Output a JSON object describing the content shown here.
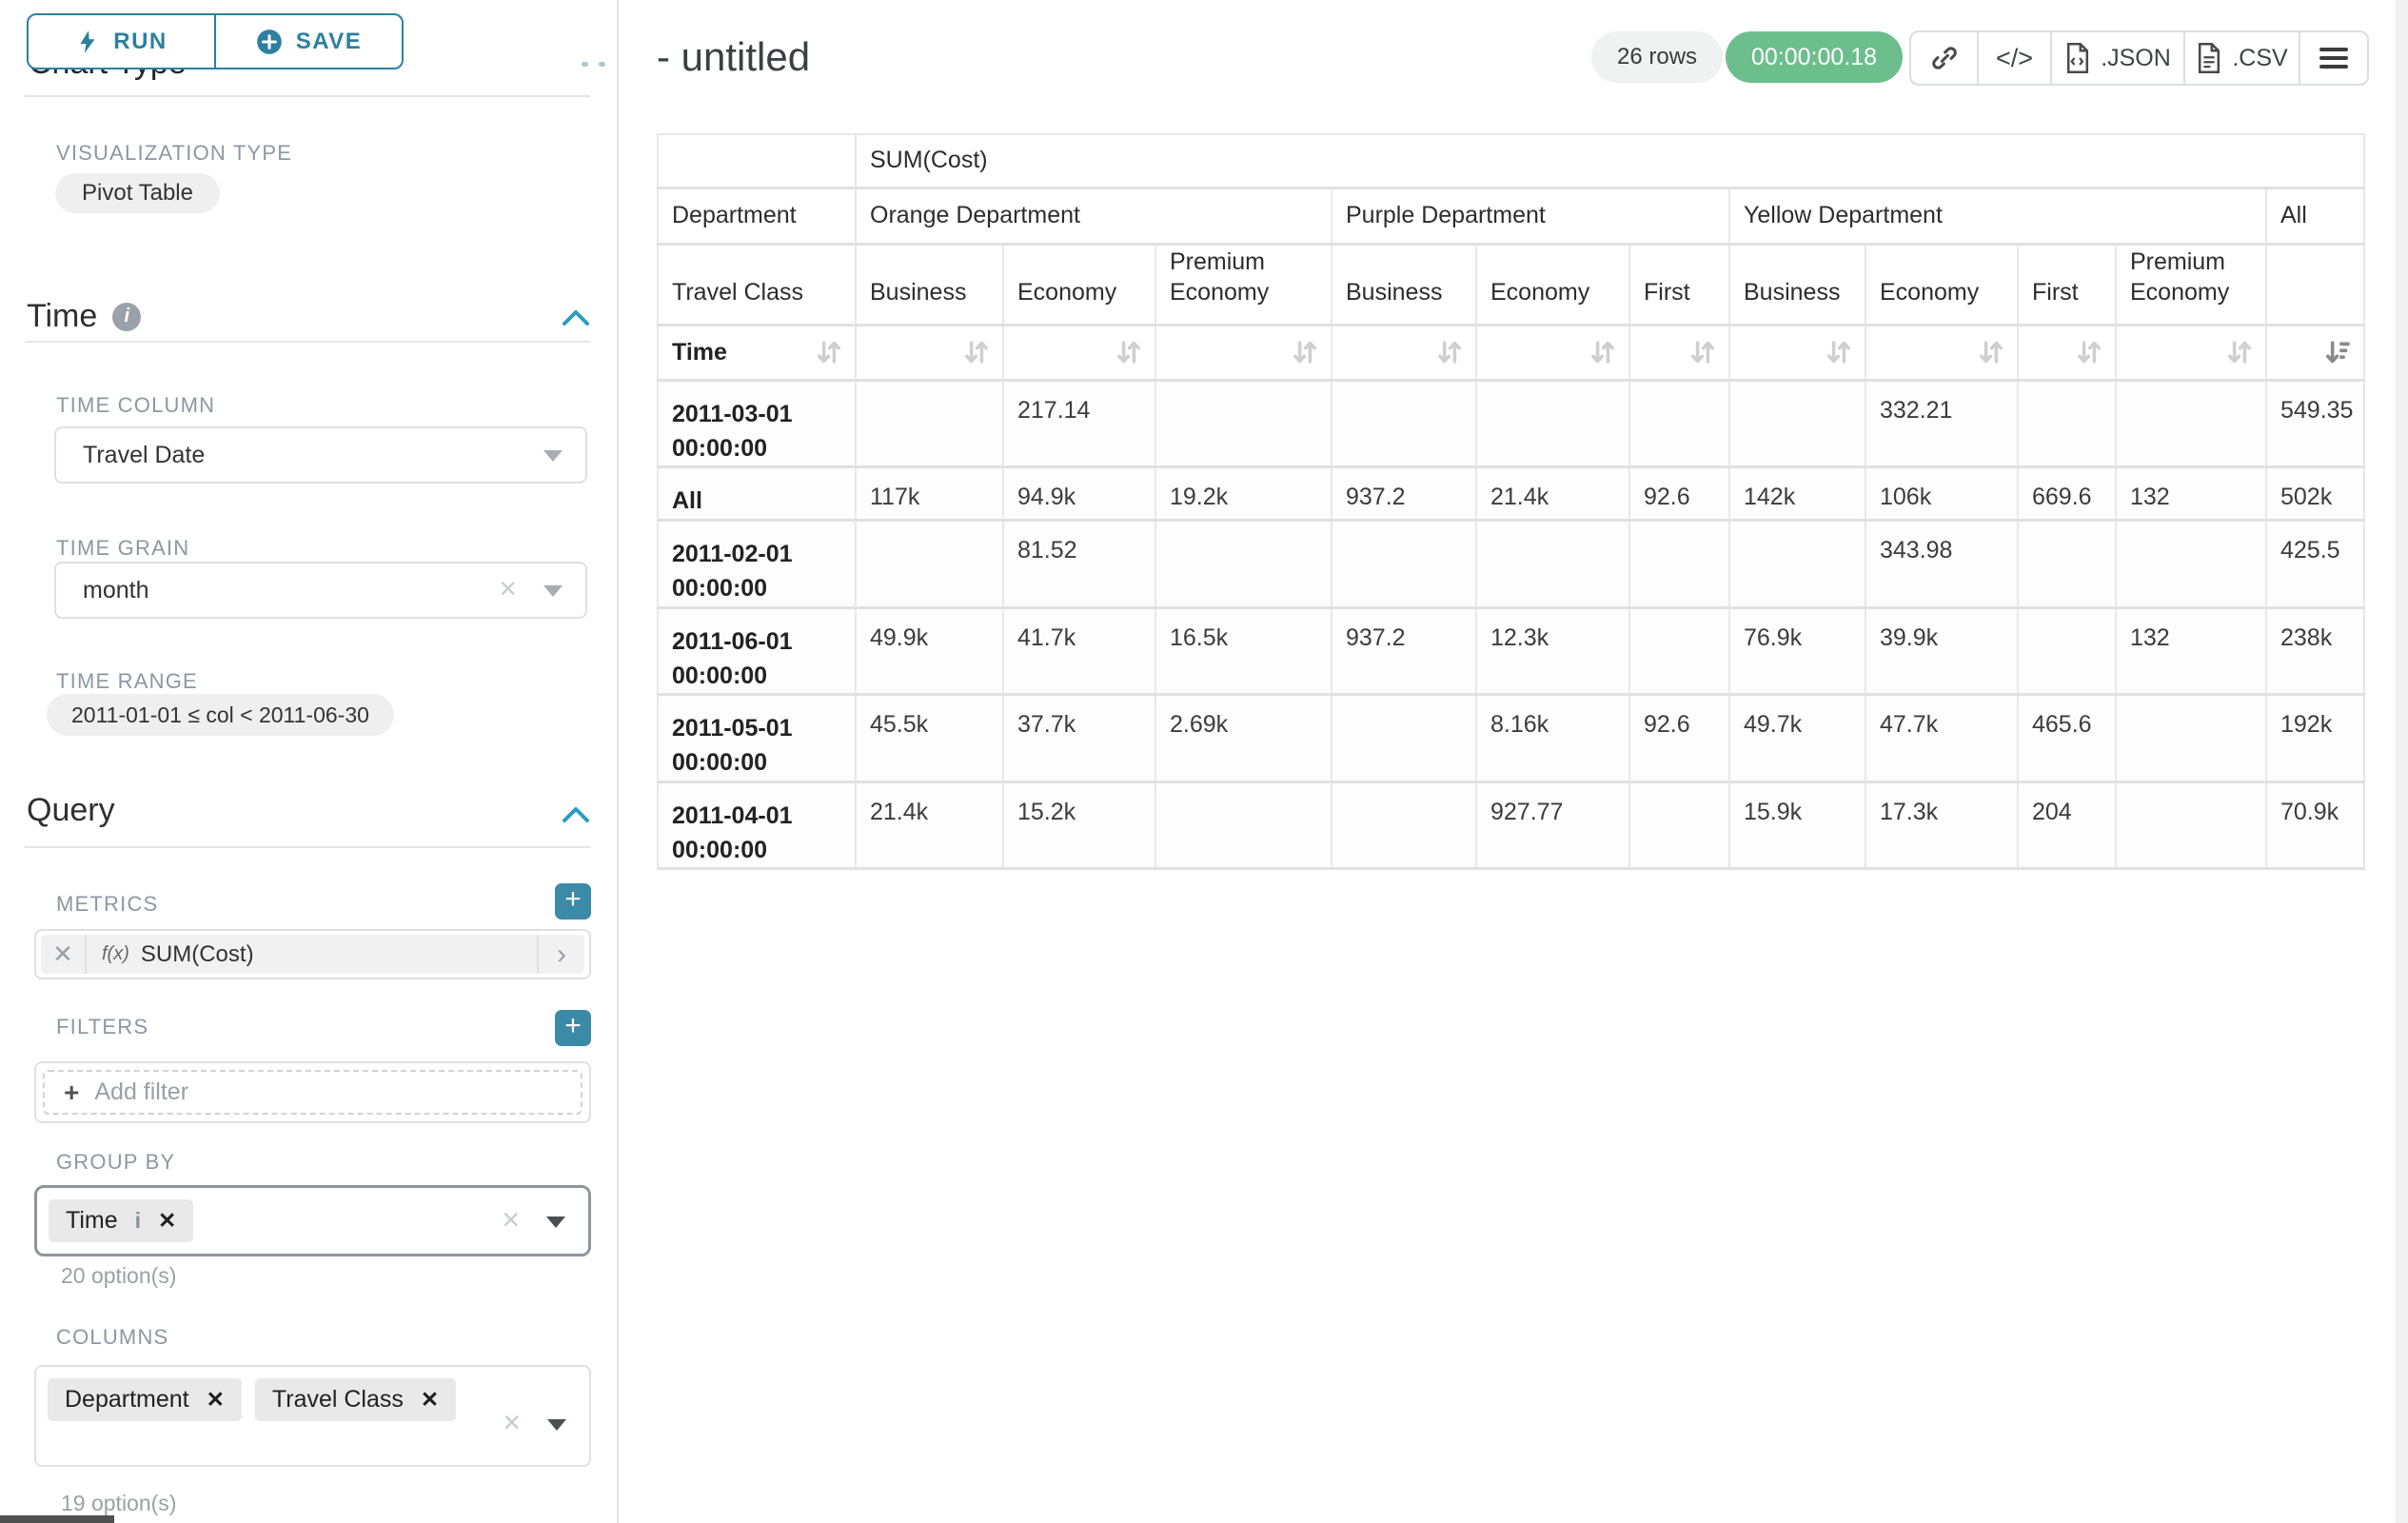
{
  "colors": {
    "accent_teal": "#2c80a0",
    "timer_green": "#6dbe8d",
    "label_gray": "#8b98a1"
  },
  "icons": {
    "run": "bolt-icon",
    "save": "plus-circle-icon",
    "time_info": "info-icon",
    "collapse": "chevron-up-icon",
    "share": "link-icon",
    "embed": "code-icon",
    "json": "file-code-icon",
    "csv": "file-text-icon",
    "menu": "hamburger-icon",
    "sort": "sort-arrows-icon",
    "sort_desc": "sort-desc-icon"
  },
  "sidebar": {
    "run_button": "RUN",
    "save_button": "SAVE",
    "hidden_heading": "Chart Type",
    "visualization": {
      "label": "VISUALIZATION TYPE",
      "value": "Pivot Table"
    },
    "time": {
      "title": "Time",
      "time_column_label": "TIME COLUMN",
      "time_column_value": "Travel Date",
      "time_grain_label": "TIME GRAIN",
      "time_grain_value": "month",
      "time_range_label": "TIME RANGE",
      "time_range_value": "2011-01-01 ≤ col < 2011-06-30"
    },
    "query": {
      "title": "Query",
      "metrics_label": "METRICS",
      "metric_fn_badge": "f(x)",
      "metric_value": "SUM(Cost)",
      "filters_label": "FILTERS",
      "add_filter_label": "Add filter",
      "group_by_label": "GROUP BY",
      "group_by_chips": [
        {
          "label": "Time",
          "info": true
        }
      ],
      "group_by_hint": "20 option(s)",
      "columns_label": "COLUMNS",
      "columns_chips": [
        {
          "label": "Department"
        },
        {
          "label": "Travel Class"
        }
      ],
      "columns_hint": "19 option(s)"
    }
  },
  "header": {
    "title": "- untitled",
    "row_count": "26 rows",
    "timer": "00:00:00.18",
    "embed_label": "</>",
    "json_label": ".JSON",
    "csv_label": ".CSV"
  },
  "chart_data": {
    "type": "table",
    "title": "SUM(Cost)",
    "row_header_levels": {
      "level1": "Department",
      "level2": "Travel Class",
      "level3": "Time"
    },
    "column_groups": [
      {
        "name": "Orange Department",
        "columns": [
          "Business",
          "Economy",
          "Premium Economy"
        ]
      },
      {
        "name": "Purple Department",
        "columns": [
          "Business",
          "Economy",
          "First"
        ]
      },
      {
        "name": "Yellow Department",
        "columns": [
          "Business",
          "Economy",
          "First",
          "Premium Economy"
        ]
      },
      {
        "name": "All",
        "columns": [
          ""
        ]
      }
    ],
    "sorted_column": "All",
    "sort_direction": "desc",
    "rows": [
      {
        "label": "2011-03-01 00:00:00",
        "values": [
          "",
          "217.14",
          "",
          "",
          "",
          "",
          "",
          "332.21",
          "",
          "",
          "549.35"
        ]
      },
      {
        "label": "All",
        "values": [
          "117k",
          "94.9k",
          "19.2k",
          "937.2",
          "21.4k",
          "92.6",
          "142k",
          "106k",
          "669.6",
          "132",
          "502k"
        ]
      },
      {
        "label": "2011-02-01 00:00:00",
        "values": [
          "",
          "81.52",
          "",
          "",
          "",
          "",
          "",
          "343.98",
          "",
          "",
          "425.5"
        ]
      },
      {
        "label": "2011-06-01 00:00:00",
        "values": [
          "49.9k",
          "41.7k",
          "16.5k",
          "937.2",
          "12.3k",
          "",
          "76.9k",
          "39.9k",
          "",
          "132",
          "238k"
        ]
      },
      {
        "label": "2011-05-01 00:00:00",
        "values": [
          "45.5k",
          "37.7k",
          "2.69k",
          "",
          "8.16k",
          "92.6",
          "49.7k",
          "47.7k",
          "465.6",
          "",
          "192k"
        ]
      },
      {
        "label": "2011-04-01 00:00:00",
        "values": [
          "21.4k",
          "15.2k",
          "",
          "",
          "927.77",
          "",
          "15.9k",
          "17.3k",
          "204",
          "",
          "70.9k"
        ]
      }
    ]
  }
}
